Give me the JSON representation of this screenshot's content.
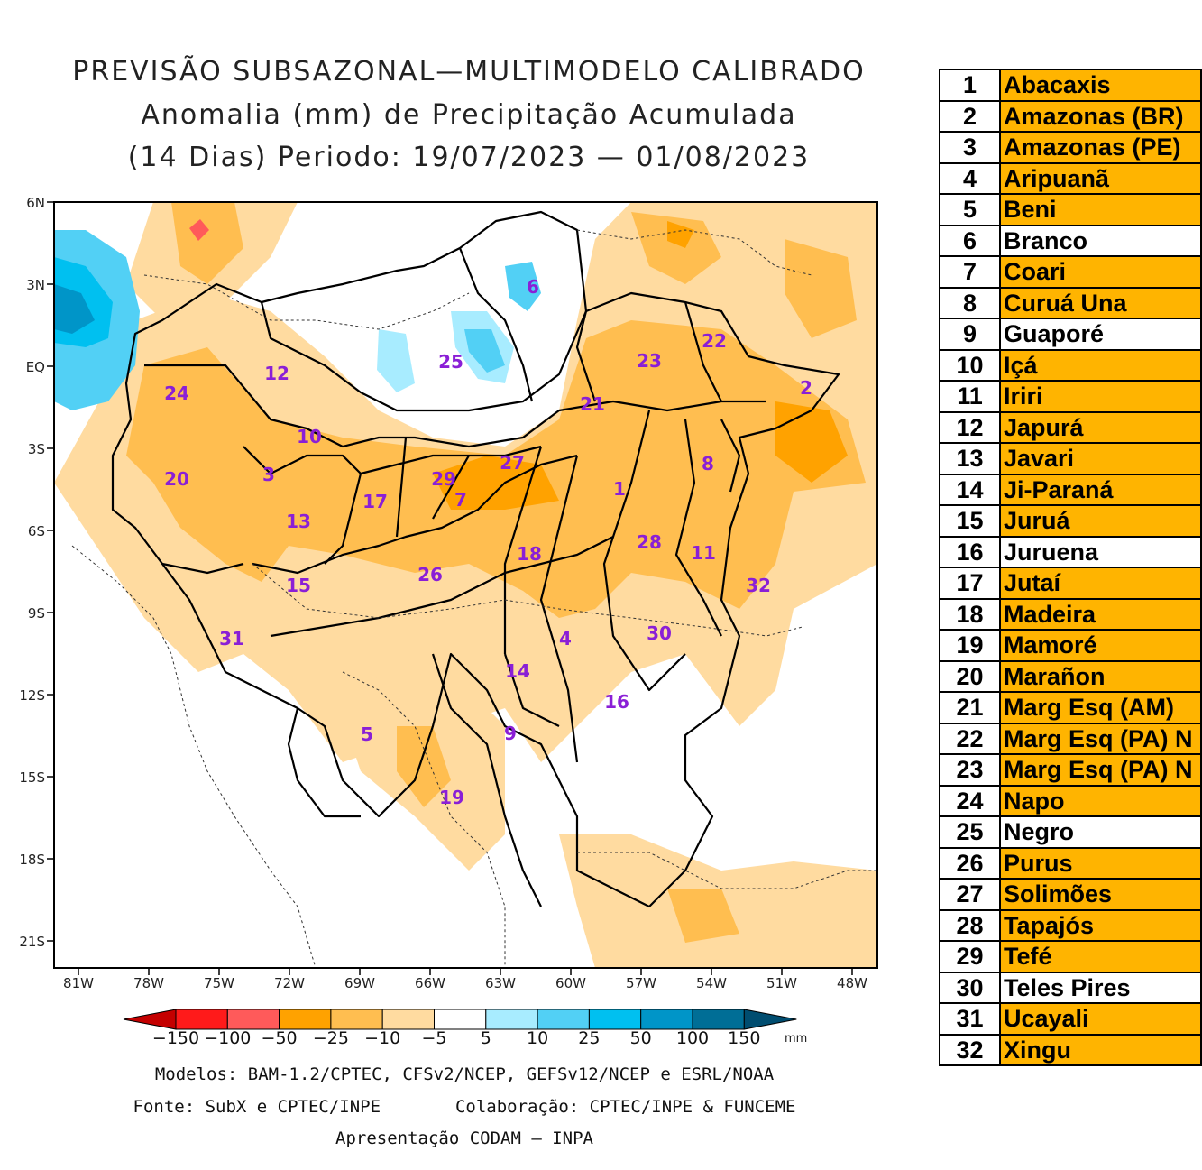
{
  "title": {
    "line1": "PREVISÃO SUBSAZONAL—MULTIMODELO CALIBRADO",
    "line2": "Anomalia (mm) de Precipitação Acumulada",
    "line3": "(14 Dias) Periodo: 19/07/2023 — 01/08/2023"
  },
  "map": {
    "lat_labels": [
      "6N",
      "3N",
      "EQ",
      "3S",
      "6S",
      "9S",
      "12S",
      "15S",
      "18S",
      "21S"
    ],
    "lon_labels": [
      "81W",
      "78W",
      "75W",
      "72W",
      "69W",
      "66W",
      "63W",
      "60W",
      "57W",
      "54W",
      "51W",
      "48W"
    ],
    "basin_labels": [
      "1",
      "2",
      "3",
      "4",
      "5",
      "6",
      "7",
      "8",
      "9",
      "10",
      "11",
      "12",
      "13",
      "14",
      "15",
      "16",
      "17",
      "18",
      "19",
      "20",
      "21",
      "22",
      "23",
      "24",
      "25",
      "26",
      "27",
      "28",
      "29",
      "30",
      "31",
      "32"
    ]
  },
  "colorbar": {
    "ticks": [
      "−150",
      "−100",
      "−50",
      "−25",
      "−10",
      "−5",
      "5",
      "10",
      "25",
      "50",
      "100",
      "150"
    ],
    "unit": "mm",
    "colors": [
      "#c40000",
      "#ff1a1a",
      "#ff5a5a",
      "#ffa200",
      "#ffbe50",
      "#ffdba0",
      "#ffffff",
      "#a8ecff",
      "#52d0f5",
      "#00c0f0",
      "#0095c8",
      "#006e96",
      "#004d70"
    ]
  },
  "credits": {
    "models": "Modelos: BAM-1.2/CPTEC, CFSv2/NCEP, GEFSv12/NCEP e ESRL/NOAA",
    "source": "Fonte: SubX e CPTEC/INPE",
    "collab": "Colaboração: CPTEC/INPE & FUNCEME",
    "presentation": "Apresentação CODAM — INPA"
  },
  "colors": {
    "orange": "#ffb400",
    "white": "#ffffff",
    "basin_label": "#8a1fd6"
  },
  "basins": [
    {
      "n": "1",
      "name": "Abacaxis",
      "fill": "#ffb400"
    },
    {
      "n": "2",
      "name": "Amazonas (BR)",
      "fill": "#ffb400"
    },
    {
      "n": "3",
      "name": "Amazonas (PE)",
      "fill": "#ffb400"
    },
    {
      "n": "4",
      "name": "Aripuanã",
      "fill": "#ffb400"
    },
    {
      "n": "5",
      "name": "Beni",
      "fill": "#ffb400"
    },
    {
      "n": "6",
      "name": "Branco",
      "fill": "#ffffff"
    },
    {
      "n": "7",
      "name": "Coari",
      "fill": "#ffb400"
    },
    {
      "n": "8",
      "name": "Curuá Una",
      "fill": "#ffb400"
    },
    {
      "n": "9",
      "name": "Guaporé",
      "fill": "#ffffff"
    },
    {
      "n": "10",
      "name": "Içá",
      "fill": "#ffb400"
    },
    {
      "n": "11",
      "name": "Iriri",
      "fill": "#ffb400"
    },
    {
      "n": "12",
      "name": "Japurá",
      "fill": "#ffb400"
    },
    {
      "n": "13",
      "name": "Javari",
      "fill": "#ffb400"
    },
    {
      "n": "14",
      "name": "Ji-Paraná",
      "fill": "#ffb400"
    },
    {
      "n": "15",
      "name": "Juruá",
      "fill": "#ffb400"
    },
    {
      "n": "16",
      "name": "Juruena",
      "fill": "#ffffff"
    },
    {
      "n": "17",
      "name": "Jutaí",
      "fill": "#ffb400"
    },
    {
      "n": "18",
      "name": "Madeira",
      "fill": "#ffb400"
    },
    {
      "n": "19",
      "name": "Mamoré",
      "fill": "#ffb400"
    },
    {
      "n": "20",
      "name": "Marañon",
      "fill": "#ffb400"
    },
    {
      "n": "21",
      "name": "Marg Esq (AM)",
      "fill": "#ffb400"
    },
    {
      "n": "22",
      "name": "Marg Esq (PA) N",
      "fill": "#ffb400"
    },
    {
      "n": "23",
      "name": "Marg Esq (PA) N",
      "fill": "#ffb400"
    },
    {
      "n": "24",
      "name": "Napo",
      "fill": "#ffb400"
    },
    {
      "n": "25",
      "name": "Negro",
      "fill": "#ffffff"
    },
    {
      "n": "26",
      "name": "Purus",
      "fill": "#ffb400"
    },
    {
      "n": "27",
      "name": "Solimões",
      "fill": "#ffb400"
    },
    {
      "n": "28",
      "name": "Tapajós",
      "fill": "#ffb400"
    },
    {
      "n": "29",
      "name": "Tefé",
      "fill": "#ffb400"
    },
    {
      "n": "30",
      "name": "Teles Pires",
      "fill": "#ffffff"
    },
    {
      "n": "31",
      "name": "Ucayali",
      "fill": "#ffb400"
    },
    {
      "n": "32",
      "name": "Xingu",
      "fill": "#ffb400"
    }
  ]
}
